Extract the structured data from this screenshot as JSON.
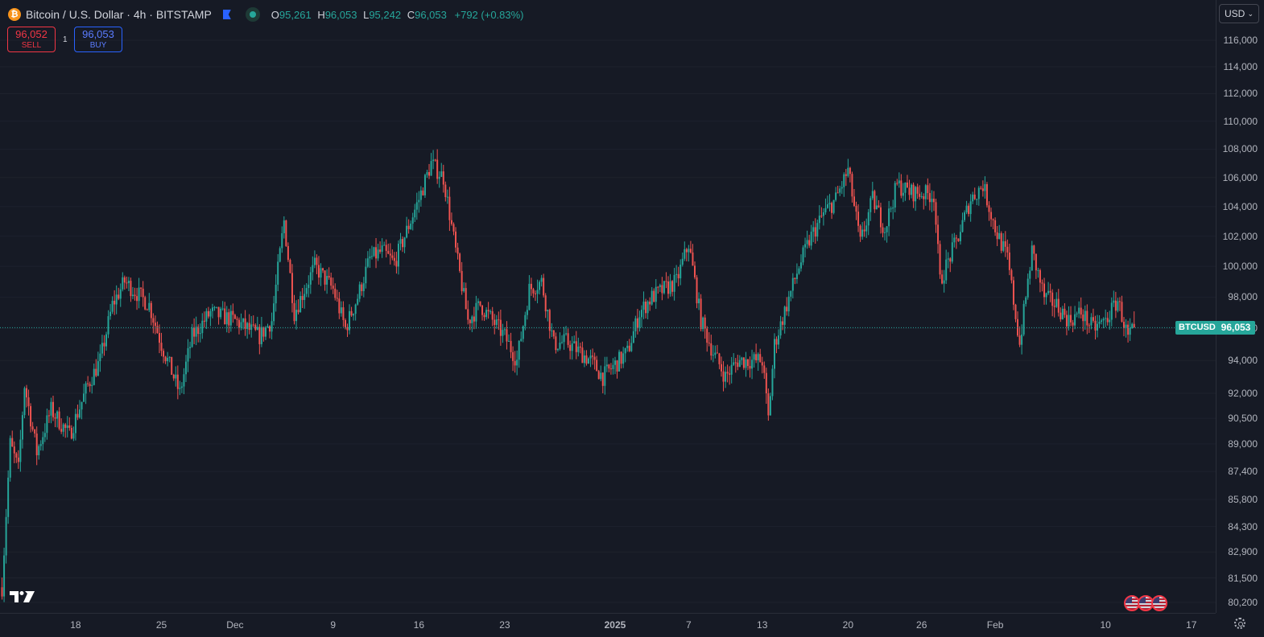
{
  "header": {
    "logo_letter": "₿",
    "title": "Bitcoin / U.S. Dollar · 4h · BITSTAMP",
    "ohlc": {
      "o_label": "O",
      "o": "95,261",
      "h_label": "H",
      "h": "96,053",
      "l_label": "L",
      "l": "95,242",
      "c_label": "C",
      "c": "96,053",
      "change": "+792 (+0.83%)"
    }
  },
  "trade": {
    "sell_price": "96,052",
    "sell_label": "SELL",
    "spread": "1",
    "buy_price": "96,053",
    "buy_label": "BUY"
  },
  "currency_button": "USD",
  "price_tag": {
    "symbol": "BTCUSD",
    "price": "96,053"
  },
  "colors": {
    "up": "#26a69a",
    "down": "#ef5350",
    "background": "#161a25",
    "grid": "#2a2e39"
  },
  "chart_data": {
    "type": "candlestick",
    "symbol": "BTCUSD",
    "interval": "4h",
    "scale": "log",
    "ylim": [
      79500,
      118000
    ],
    "y_ticks": [
      "116,000",
      "114,000",
      "112,000",
      "110,000",
      "108,000",
      "106,000",
      "104,000",
      "102,000",
      "100,000",
      "98,000",
      "96,000",
      "94,000",
      "92,000",
      "90,500",
      "89,000",
      "87,400",
      "85,800",
      "84,300",
      "82,900",
      "81,500",
      "80,200"
    ],
    "x_ticks": [
      "18",
      "25",
      "Dec",
      "9",
      "16",
      "23",
      "2025",
      "7",
      "13",
      "20",
      "26",
      "Feb",
      "10",
      "17"
    ],
    "last_price": 96053,
    "close_path": [
      [
        "2024-11-12 00:00",
        81000
      ],
      [
        "2024-11-12 16:00",
        89000
      ],
      [
        "2024-11-13 08:00",
        87500
      ],
      [
        "2024-11-13 20:00",
        92500
      ],
      [
        "2024-11-14 20:00",
        88500
      ],
      [
        "2024-11-16 00:00",
        91000
      ],
      [
        "2024-11-17 12:00",
        89500
      ],
      [
        "2024-11-19 00:00",
        92500
      ],
      [
        "2024-11-20 00:00",
        94000
      ],
      [
        "2024-11-21 00:00",
        97500
      ],
      [
        "2024-11-22 00:00",
        99000
      ],
      [
        "2024-11-24 00:00",
        97500
      ],
      [
        "2024-11-25 00:00",
        95000
      ],
      [
        "2024-11-26 12:00",
        92000
      ],
      [
        "2024-11-27 12:00",
        95500
      ],
      [
        "2024-11-29 00:00",
        97000
      ],
      [
        "2024-12-01 00:00",
        96500
      ],
      [
        "2024-12-03 00:00",
        95500
      ],
      [
        "2024-12-04 00:00",
        96500
      ],
      [
        "2024-12-05 00:00",
        103000
      ],
      [
        "2024-12-05 20:00",
        97000
      ],
      [
        "2024-12-07 12:00",
        100000
      ],
      [
        "2024-12-09 00:00",
        98500
      ],
      [
        "2024-12-10 00:00",
        96000
      ],
      [
        "2024-12-11 00:00",
        98000
      ],
      [
        "2024-12-12 00:00",
        100500
      ],
      [
        "2024-12-13 00:00",
        101000
      ],
      [
        "2024-12-14 00:00",
        100200
      ],
      [
        "2024-12-16 00:00",
        104500
      ],
      [
        "2024-12-17 00:00",
        107000
      ],
      [
        "2024-12-18 00:00",
        106000
      ],
      [
        "2024-12-19 00:00",
        101000
      ],
      [
        "2024-12-20 00:00",
        96500
      ],
      [
        "2024-12-21 00:00",
        97500
      ],
      [
        "2024-12-23 00:00",
        95500
      ],
      [
        "2024-12-24 00:00",
        94000
      ],
      [
        "2024-12-25 00:00",
        98500
      ],
      [
        "2024-12-26 00:00",
        99000
      ],
      [
        "2024-12-27 00:00",
        95000
      ],
      [
        "2024-12-28 00:00",
        95200
      ],
      [
        "2024-12-30 00:00",
        94000
      ],
      [
        "2024-12-31 00:00",
        93000
      ],
      [
        "2025-01-02 00:00",
        94500
      ],
      [
        "2025-01-03 00:00",
        97000
      ],
      [
        "2025-01-04 00:00",
        98000
      ],
      [
        "2025-01-06 00:00",
        99000
      ],
      [
        "2025-01-07 00:00",
        101500
      ],
      [
        "2025-01-08 00:00",
        96500
      ],
      [
        "2025-01-09 00:00",
        94500
      ],
      [
        "2025-01-10 00:00",
        93000
      ],
      [
        "2025-01-11 00:00",
        94000
      ],
      [
        "2025-01-13 00:00",
        94000
      ],
      [
        "2025-01-13 12:00",
        90500
      ],
      [
        "2025-01-14 00:00",
        95000
      ],
      [
        "2025-01-15 00:00",
        97500
      ],
      [
        "2025-01-16 00:00",
        100000
      ],
      [
        "2025-01-17 00:00",
        102000
      ],
      [
        "2025-01-18 00:00",
        103500
      ],
      [
        "2025-01-19 00:00",
        104500
      ],
      [
        "2025-01-20 00:00",
        106500
      ],
      [
        "2025-01-21 00:00",
        101500
      ],
      [
        "2025-01-22 00:00",
        104500
      ],
      [
        "2025-01-23 00:00",
        102500
      ],
      [
        "2025-01-24 00:00",
        105500
      ],
      [
        "2025-01-25 00:00",
        105000
      ],
      [
        "2025-01-27 00:00",
        104800
      ],
      [
        "2025-01-27 12:00",
        99000
      ],
      [
        "2025-01-29 00:00",
        102000
      ],
      [
        "2025-01-30 00:00",
        104500
      ],
      [
        "2025-01-31 00:00",
        105500
      ],
      [
        "2025-02-01 00:00",
        102500
      ],
      [
        "2025-02-02 00:00",
        100500
      ],
      [
        "2025-02-03 00:00",
        95000
      ],
      [
        "2025-02-04 00:00",
        101000
      ],
      [
        "2025-02-05 00:00",
        98000
      ],
      [
        "2025-02-06 00:00",
        97500
      ],
      [
        "2025-02-07 00:00",
        96500
      ],
      [
        "2025-02-08 00:00",
        97000
      ],
      [
        "2025-02-09 00:00",
        96000
      ],
      [
        "2025-02-10 00:00",
        96500
      ],
      [
        "2025-02-11 00:00",
        97800
      ],
      [
        "2025-02-11 20:00",
        95400
      ],
      [
        "2025-02-12 08:00",
        96053
      ]
    ],
    "x_start": "2024-11-11 20:00",
    "x_end": "2025-02-18 00:00"
  }
}
